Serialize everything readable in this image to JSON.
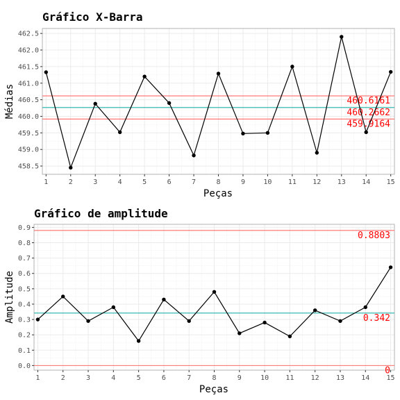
{
  "colors": {
    "control_limit": "#ff6b6b",
    "center_line": "#20b2aa",
    "series_line": "#000000",
    "label_text": "#ff0000",
    "grid": "#ebebeb",
    "panel_border": "#b3b3b3"
  },
  "chart_data": [
    {
      "type": "line",
      "title": "Gráfico X-Barra",
      "xlabel": "Peças",
      "ylabel": "Médias",
      "x": [
        1,
        2,
        3,
        4,
        5,
        6,
        7,
        8,
        9,
        10,
        11,
        12,
        13,
        14,
        15
      ],
      "xlim": [
        0.85,
        15.15
      ],
      "xticks": [
        "1",
        "2",
        "3",
        "4",
        "5",
        "6",
        "7",
        "8",
        "9",
        "10",
        "11",
        "12",
        "13",
        "14",
        "15"
      ],
      "ylim": [
        458.25,
        462.65
      ],
      "yticks": [
        "458.5",
        "459.0",
        "459.5",
        "460.0",
        "460.5",
        "461.0",
        "461.5",
        "462.0",
        "462.5"
      ],
      "series": [
        {
          "values": [
            461.33,
            458.45,
            460.38,
            459.52,
            461.2,
            460.4,
            458.82,
            461.29,
            459.48,
            459.5,
            461.5,
            458.9,
            462.4,
            459.52,
            461.34
          ]
        }
      ],
      "reference_lines": [
        {
          "value": 460.6161,
          "label": "460.6161",
          "kind": "limit"
        },
        {
          "value": 460.2662,
          "label": "460.2662",
          "kind": "center"
        },
        {
          "value": 459.9164,
          "label": "459.9164",
          "kind": "limit"
        }
      ],
      "grid": true
    },
    {
      "type": "line",
      "title": "Gráfico de amplitude",
      "xlabel": "Peças",
      "ylabel": "Amplitude",
      "x": [
        1,
        2,
        3,
        4,
        5,
        6,
        7,
        8,
        9,
        10,
        11,
        12,
        13,
        14,
        15
      ],
      "xlim": [
        0.85,
        15.15
      ],
      "xticks": [
        "1",
        "2",
        "3",
        "4",
        "5",
        "6",
        "7",
        "8",
        "9",
        "10",
        "11",
        "12",
        "13",
        "14",
        "15"
      ],
      "ylim": [
        -0.03,
        0.92
      ],
      "yticks": [
        "0.0",
        "0.1",
        "0.2",
        "0.3",
        "0.4",
        "0.5",
        "0.6",
        "0.7",
        "0.8",
        "0.9"
      ],
      "series": [
        {
          "values": [
            0.3,
            0.45,
            0.29,
            0.38,
            0.16,
            0.43,
            0.29,
            0.48,
            0.21,
            0.28,
            0.19,
            0.36,
            0.29,
            0.38,
            0.64
          ]
        }
      ],
      "reference_lines": [
        {
          "value": 0.8803,
          "label": "0.8803",
          "kind": "limit"
        },
        {
          "value": 0.342,
          "label": "0.342",
          "kind": "center"
        },
        {
          "value": 0.0,
          "label": "0",
          "kind": "limit"
        }
      ],
      "grid": true
    }
  ]
}
